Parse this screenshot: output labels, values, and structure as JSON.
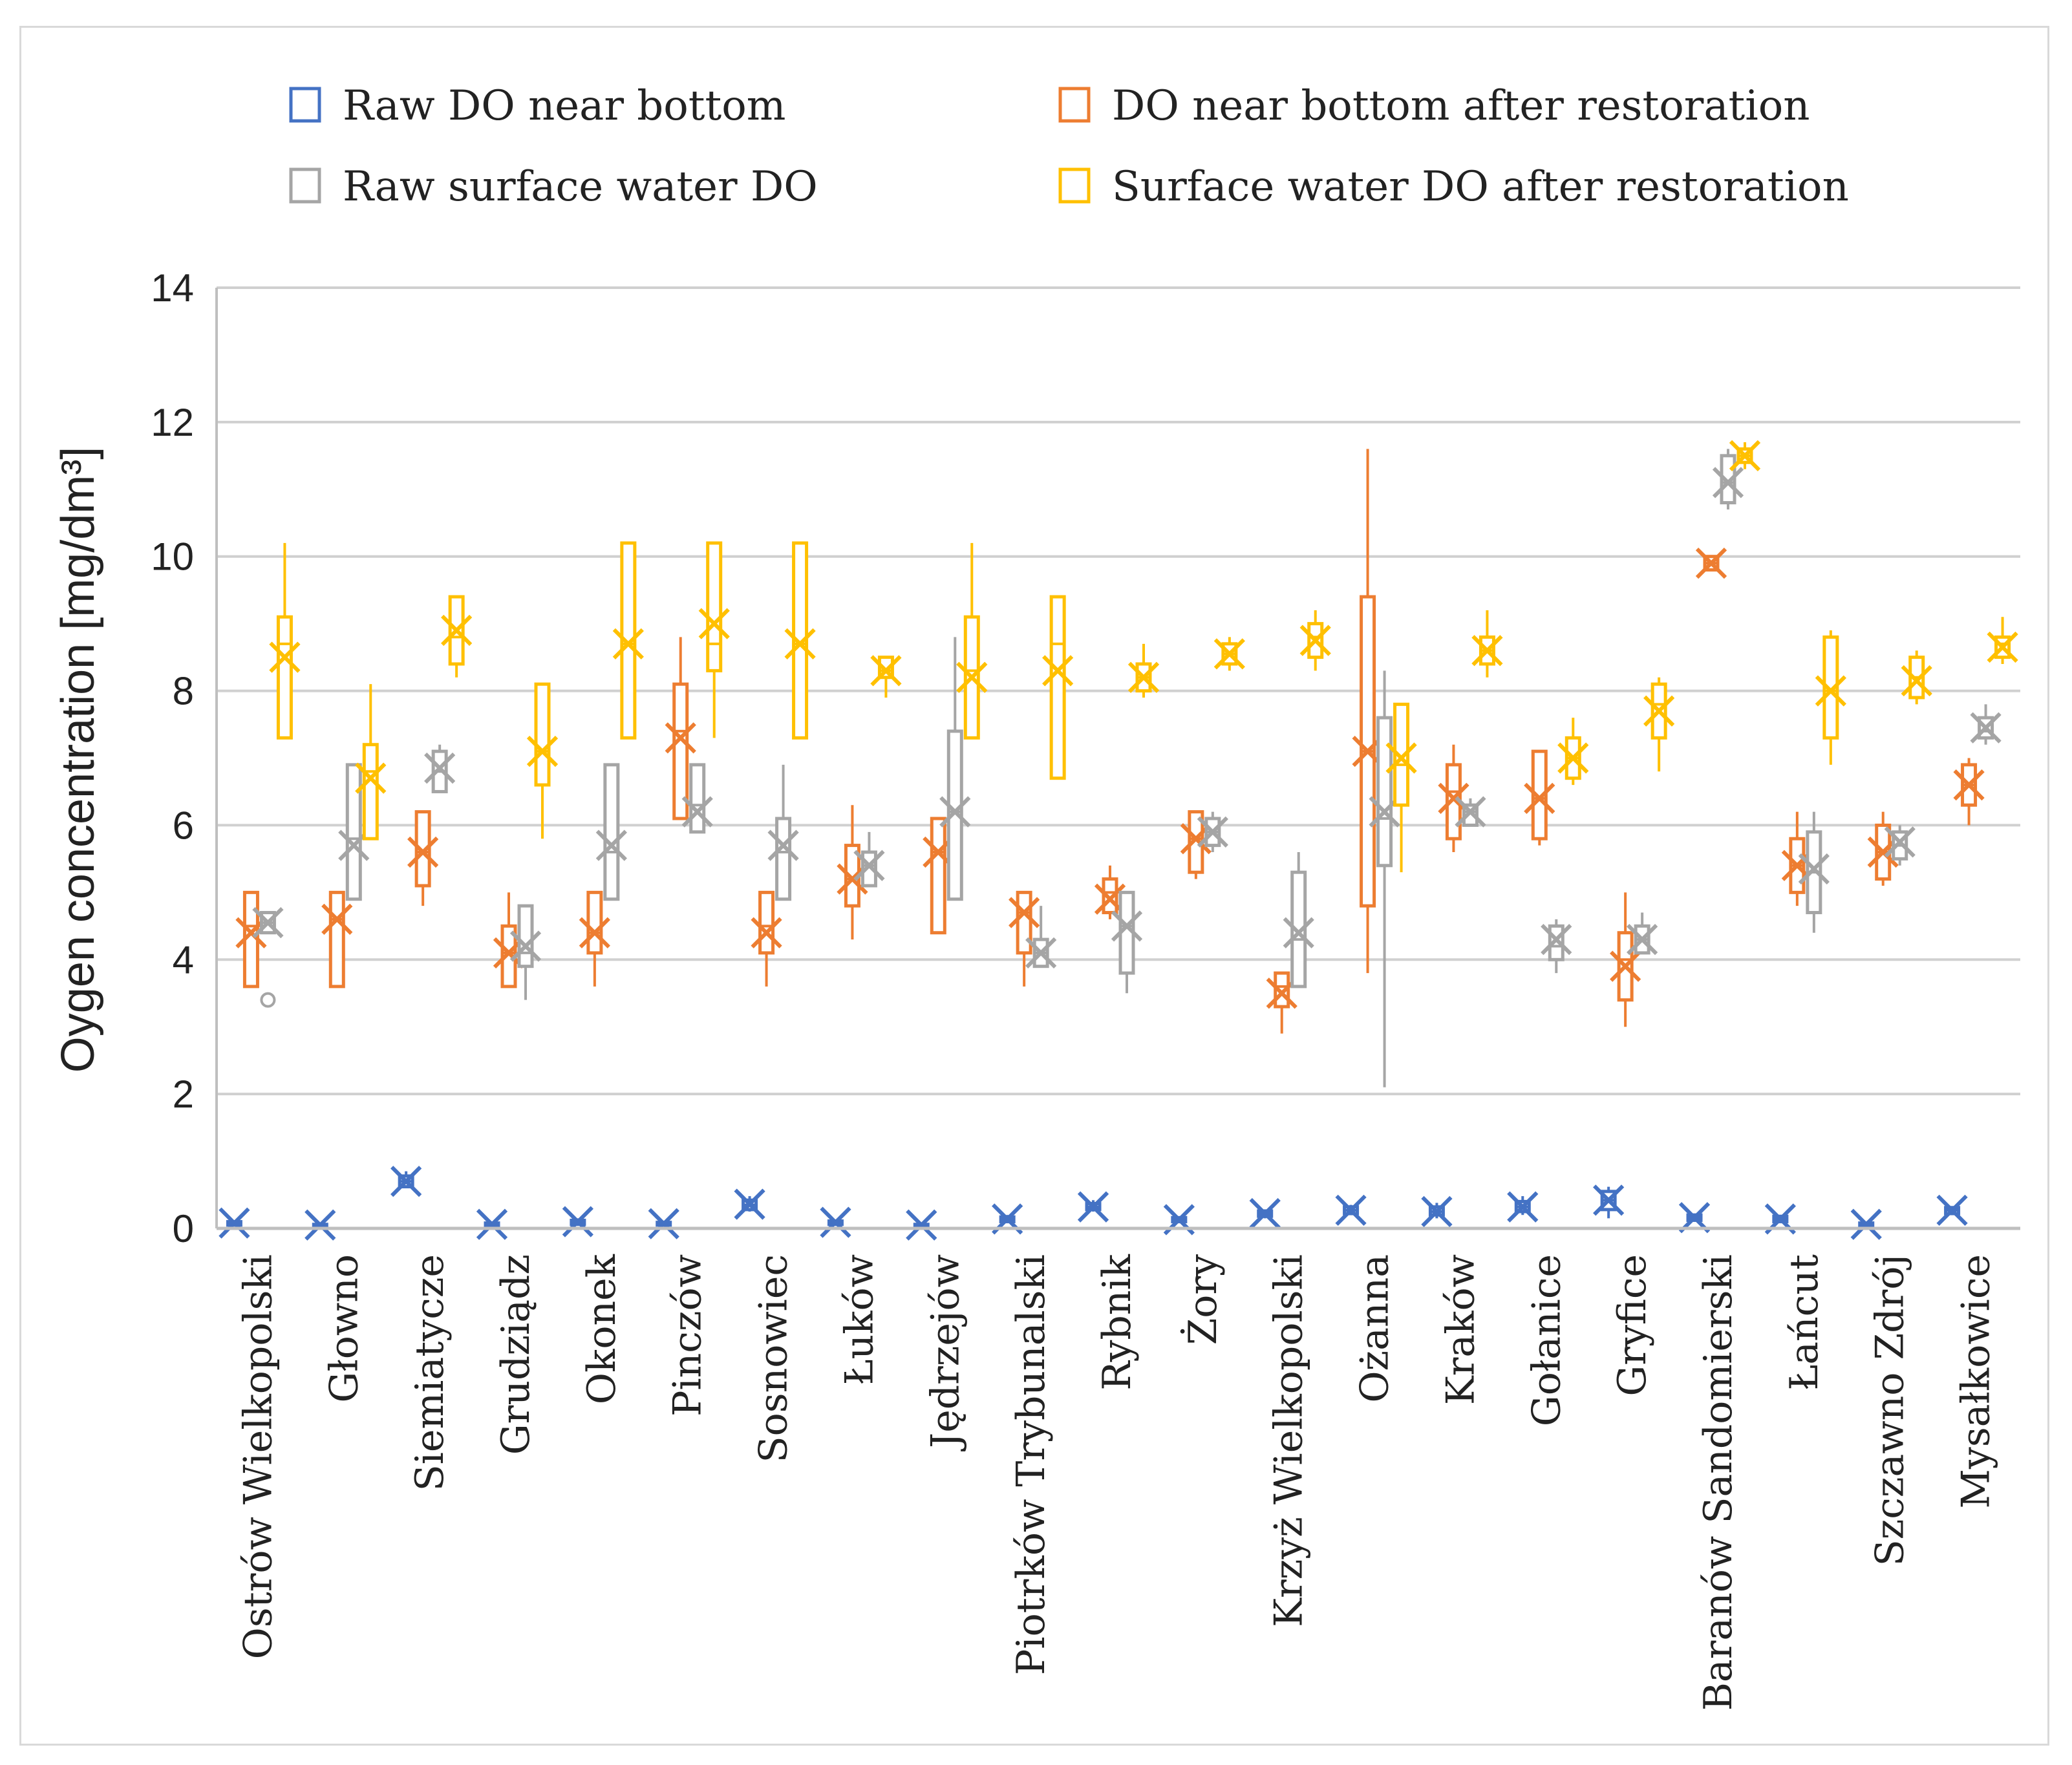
{
  "chart_data": {
    "type": "box",
    "ylabel": "Oygen concentration  [mg/dm³]",
    "ylim": [
      0,
      14
    ],
    "yticks": [
      0,
      2,
      4,
      6,
      8,
      10,
      12,
      14
    ],
    "grid": true,
    "legend_position": "top",
    "categories": [
      "Ostrów Wielkopolski",
      "Głowno",
      "Siemiatycze",
      "Grudziądz",
      "Okonek",
      "Pinczów",
      "Sosnowiec",
      "Łuków",
      "Jędrzejów",
      "Piotrków Trybunalski",
      "Rybnik",
      "Żory",
      "Krzyż Wielkopolski",
      "Ożanna",
      "Kraków",
      "Gołanice",
      "Gryfice",
      "Baranów Sandomierski",
      "Łańcut",
      "Szczawno Zdrój",
      "Mysałkowice"
    ],
    "series": [
      {
        "name": "Raw DO near bottom",
        "color": "#4472c4",
        "boxes": [
          {
            "min": 0.05,
            "q1": 0.05,
            "median": 0.08,
            "q3": 0.1,
            "max": 0.12,
            "mean": 0.08
          },
          {
            "min": 0.03,
            "q1": 0.04,
            "median": 0.05,
            "q3": 0.06,
            "max": 0.07,
            "mean": 0.05
          },
          {
            "min": 0.6,
            "q1": 0.62,
            "median": 0.7,
            "q3": 0.78,
            "max": 0.85,
            "mean": 0.7
          },
          {
            "min": 0.03,
            "q1": 0.04,
            "median": 0.06,
            "q3": 0.08,
            "max": 0.1,
            "mean": 0.06
          },
          {
            "min": 0.05,
            "q1": 0.06,
            "median": 0.08,
            "q3": 0.12,
            "max": 0.15,
            "mean": 0.1
          },
          {
            "min": 0.04,
            "q1": 0.05,
            "median": 0.07,
            "q3": 0.09,
            "max": 0.1,
            "mean": 0.07
          },
          {
            "min": 0.25,
            "q1": 0.28,
            "median": 0.35,
            "q3": 0.42,
            "max": 0.48,
            "mean": 0.36
          },
          {
            "min": 0.05,
            "q1": 0.06,
            "median": 0.08,
            "q3": 0.11,
            "max": 0.13,
            "mean": 0.09
          },
          {
            "min": 0.03,
            "q1": 0.04,
            "median": 0.05,
            "q3": 0.06,
            "max": 0.07,
            "mean": 0.05
          },
          {
            "min": 0.08,
            "q1": 0.1,
            "median": 0.13,
            "q3": 0.17,
            "max": 0.2,
            "mean": 0.14
          },
          {
            "min": 0.25,
            "q1": 0.28,
            "median": 0.32,
            "q3": 0.37,
            "max": 0.42,
            "mean": 0.32
          },
          {
            "min": 0.08,
            "q1": 0.1,
            "median": 0.13,
            "q3": 0.16,
            "max": 0.18,
            "mean": 0.13
          },
          {
            "min": 0.15,
            "q1": 0.18,
            "median": 0.22,
            "q3": 0.26,
            "max": 0.28,
            "mean": 0.22
          },
          {
            "min": 0.2,
            "q1": 0.22,
            "median": 0.27,
            "q3": 0.32,
            "max": 0.35,
            "mean": 0.27
          },
          {
            "min": 0.15,
            "q1": 0.2,
            "median": 0.25,
            "q3": 0.32,
            "max": 0.38,
            "mean": 0.25
          },
          {
            "min": 0.2,
            "q1": 0.25,
            "median": 0.32,
            "q3": 0.4,
            "max": 0.48,
            "mean": 0.32
          },
          {
            "min": 0.15,
            "q1": 0.28,
            "median": 0.42,
            "q3": 0.55,
            "max": 0.62,
            "mean": 0.42
          },
          {
            "min": 0.1,
            "q1": 0.12,
            "median": 0.16,
            "q3": 0.2,
            "max": 0.22,
            "mean": 0.16
          },
          {
            "min": 0.08,
            "q1": 0.1,
            "median": 0.14,
            "q3": 0.18,
            "max": 0.2,
            "mean": 0.14
          },
          {
            "min": 0.03,
            "q1": 0.04,
            "median": 0.06,
            "q3": 0.08,
            "max": 0.09,
            "mean": 0.06
          },
          {
            "min": 0.2,
            "q1": 0.22,
            "median": 0.27,
            "q3": 0.31,
            "max": 0.33,
            "mean": 0.27
          }
        ]
      },
      {
        "name": "DO near bottom after restoration",
        "color": "#ed7d31",
        "boxes": [
          {
            "min": 3.6,
            "q1": 3.6,
            "median": 4.5,
            "q3": 5.0,
            "max": 5.0,
            "mean": 4.4
          },
          {
            "min": 3.6,
            "q1": 3.6,
            "median": 4.6,
            "q3": 5.0,
            "max": 5.0,
            "mean": 4.6
          },
          {
            "min": 4.8,
            "q1": 5.1,
            "median": 5.6,
            "q3": 6.2,
            "max": 6.2,
            "mean": 5.6
          },
          {
            "min": 3.6,
            "q1": 3.6,
            "median": 4.1,
            "q3": 4.5,
            "max": 5.0,
            "mean": 4.1
          },
          {
            "min": 3.6,
            "q1": 4.1,
            "median": 4.4,
            "q3": 5.0,
            "max": 5.0,
            "mean": 4.4
          },
          {
            "min": 6.1,
            "q1": 6.1,
            "median": 7.4,
            "q3": 8.1,
            "max": 8.8,
            "mean": 7.3
          },
          {
            "min": 3.6,
            "q1": 4.1,
            "median": 4.5,
            "q3": 5.0,
            "max": 5.0,
            "mean": 4.4
          },
          {
            "min": 4.3,
            "q1": 4.8,
            "median": 5.2,
            "q3": 5.7,
            "max": 6.3,
            "mean": 5.2
          },
          {
            "min": 4.4,
            "q1": 4.4,
            "median": 5.6,
            "q3": 6.1,
            "max": 6.1,
            "mean": 5.6
          },
          {
            "min": 3.6,
            "q1": 4.1,
            "median": 4.7,
            "q3": 5.0,
            "max": 5.0,
            "mean": 4.7
          },
          {
            "min": 4.6,
            "q1": 4.7,
            "median": 5.0,
            "q3": 5.2,
            "max": 5.4,
            "mean": 4.9
          },
          {
            "min": 5.2,
            "q1": 5.3,
            "median": 5.8,
            "q3": 6.2,
            "max": 6.2,
            "mean": 5.8
          },
          {
            "min": 2.9,
            "q1": 3.3,
            "median": 3.6,
            "q3": 3.8,
            "max": 3.8,
            "mean": 3.5
          },
          {
            "min": 3.8,
            "q1": 4.8,
            "median": 7.1,
            "q3": 9.4,
            "max": 11.6,
            "mean": 7.1
          },
          {
            "min": 5.6,
            "q1": 5.8,
            "median": 6.5,
            "q3": 6.9,
            "max": 7.2,
            "mean": 6.4
          },
          {
            "min": 5.7,
            "q1": 5.8,
            "median": 6.4,
            "q3": 7.1,
            "max": 7.1,
            "mean": 6.4
          },
          {
            "min": 3.0,
            "q1": 3.4,
            "median": 4.0,
            "q3": 4.4,
            "max": 5.0,
            "mean": 3.9
          },
          {
            "min": 9.8,
            "q1": 9.8,
            "median": 9.9,
            "q3": 10.0,
            "max": 10.0,
            "mean": 9.9
          },
          {
            "min": 4.8,
            "q1": 5.0,
            "median": 5.4,
            "q3": 5.8,
            "max": 6.2,
            "mean": 5.4
          },
          {
            "min": 5.1,
            "q1": 5.2,
            "median": 5.6,
            "q3": 6.0,
            "max": 6.2,
            "mean": 5.6
          },
          {
            "min": 6.0,
            "q1": 6.3,
            "median": 6.6,
            "q3": 6.9,
            "max": 7.0,
            "mean": 6.6
          }
        ]
      },
      {
        "name": "Raw surface water DO",
        "color": "#a5a5a5",
        "boxes": [
          {
            "min": 4.4,
            "q1": 4.4,
            "median": 4.55,
            "q3": 4.7,
            "max": 4.7,
            "mean": 4.55,
            "outliers": [
              3.4
            ]
          },
          {
            "min": 4.9,
            "q1": 4.9,
            "median": 5.8,
            "q3": 6.9,
            "max": 6.9,
            "mean": 5.7
          },
          {
            "min": 6.5,
            "q1": 6.5,
            "median": 6.8,
            "q3": 7.1,
            "max": 7.2,
            "mean": 6.85
          },
          {
            "min": 3.4,
            "q1": 3.9,
            "median": 4.1,
            "q3": 4.8,
            "max": 4.8,
            "mean": 4.2
          },
          {
            "min": 4.9,
            "q1": 4.9,
            "median": 5.6,
            "q3": 6.9,
            "max": 6.9,
            "mean": 5.7
          },
          {
            "min": 5.9,
            "q1": 5.9,
            "median": 6.3,
            "q3": 6.9,
            "max": 6.9,
            "mean": 6.2
          },
          {
            "min": 4.9,
            "q1": 4.9,
            "median": 5.6,
            "q3": 6.1,
            "max": 6.9,
            "mean": 5.7
          },
          {
            "min": 5.1,
            "q1": 5.1,
            "median": 5.4,
            "q3": 5.6,
            "max": 5.9,
            "mean": 5.4
          },
          {
            "min": 4.9,
            "q1": 4.9,
            "median": 6.2,
            "q3": 7.4,
            "max": 8.8,
            "mean": 6.2
          },
          {
            "min": 3.9,
            "q1": 3.9,
            "median": 4.1,
            "q3": 4.3,
            "max": 4.8,
            "mean": 4.1
          },
          {
            "min": 3.5,
            "q1": 3.8,
            "median": 4.5,
            "q3": 5.0,
            "max": 5.0,
            "mean": 4.5
          },
          {
            "min": 5.6,
            "q1": 5.7,
            "median": 5.9,
            "q3": 6.1,
            "max": 6.2,
            "mean": 5.9
          },
          {
            "min": 3.6,
            "q1": 3.6,
            "median": 4.3,
            "q3": 5.3,
            "max": 5.6,
            "mean": 4.4
          },
          {
            "min": 2.1,
            "q1": 5.4,
            "median": 6.1,
            "q3": 7.6,
            "max": 8.3,
            "mean": 6.2
          },
          {
            "min": 6.0,
            "q1": 6.0,
            "median": 6.2,
            "q3": 6.3,
            "max": 6.4,
            "mean": 6.2
          },
          {
            "min": 3.8,
            "q1": 4.0,
            "median": 4.2,
            "q3": 4.5,
            "max": 4.6,
            "mean": 4.3
          },
          {
            "min": 4.1,
            "q1": 4.1,
            "median": 4.3,
            "q3": 4.5,
            "max": 4.7,
            "mean": 4.3
          },
          {
            "min": 10.7,
            "q1": 10.8,
            "median": 11.1,
            "q3": 11.5,
            "max": 11.6,
            "mean": 11.1
          },
          {
            "min": 4.4,
            "q1": 4.7,
            "median": 5.3,
            "q3": 5.9,
            "max": 6.2,
            "mean": 5.35
          },
          {
            "min": 5.4,
            "q1": 5.5,
            "median": 5.7,
            "q3": 5.9,
            "max": 6.0,
            "mean": 5.75
          },
          {
            "min": 7.2,
            "q1": 7.3,
            "median": 7.4,
            "q3": 7.6,
            "max": 7.8,
            "mean": 7.45
          }
        ]
      },
      {
        "name": "Surface water DO after restoration",
        "color": "#ffc000",
        "boxes": [
          {
            "min": 7.3,
            "q1": 7.3,
            "median": 8.7,
            "q3": 9.1,
            "max": 10.2,
            "mean": 8.5
          },
          {
            "min": 5.8,
            "q1": 5.8,
            "median": 6.8,
            "q3": 7.2,
            "max": 8.1,
            "mean": 6.7
          },
          {
            "min": 8.2,
            "q1": 8.4,
            "median": 8.8,
            "q3": 9.4,
            "max": 9.4,
            "mean": 8.9
          },
          {
            "min": 5.8,
            "q1": 6.6,
            "median": 7.1,
            "q3": 8.1,
            "max": 8.1,
            "mean": 7.1
          },
          {
            "min": 7.3,
            "q1": 7.3,
            "median": 8.7,
            "q3": 10.2,
            "max": 10.2,
            "mean": 8.7
          },
          {
            "min": 7.3,
            "q1": 8.3,
            "median": 8.7,
            "q3": 10.2,
            "max": 10.2,
            "mean": 9.0
          },
          {
            "min": 7.3,
            "q1": 7.3,
            "median": 8.7,
            "q3": 10.2,
            "max": 10.2,
            "mean": 8.7
          },
          {
            "min": 7.9,
            "q1": 8.2,
            "median": 8.3,
            "q3": 8.5,
            "max": 8.5,
            "mean": 8.3
          },
          {
            "min": 7.3,
            "q1": 7.3,
            "median": 8.3,
            "q3": 9.1,
            "max": 10.2,
            "mean": 8.2
          },
          {
            "min": 6.7,
            "q1": 6.7,
            "median": 8.7,
            "q3": 9.4,
            "max": 9.4,
            "mean": 8.3
          },
          {
            "min": 7.9,
            "q1": 8.0,
            "median": 8.2,
            "q3": 8.4,
            "max": 8.7,
            "mean": 8.2
          },
          {
            "min": 8.3,
            "q1": 8.4,
            "median": 8.55,
            "q3": 8.7,
            "max": 8.8,
            "mean": 8.55
          },
          {
            "min": 8.3,
            "q1": 8.5,
            "median": 8.8,
            "q3": 9.0,
            "max": 9.2,
            "mean": 8.75
          },
          {
            "min": 5.3,
            "q1": 6.3,
            "median": 6.9,
            "q3": 7.8,
            "max": 7.8,
            "mean": 7.0
          },
          {
            "min": 8.2,
            "q1": 8.4,
            "median": 8.6,
            "q3": 8.8,
            "max": 9.2,
            "mean": 8.6
          },
          {
            "min": 6.6,
            "q1": 6.7,
            "median": 7.0,
            "q3": 7.3,
            "max": 7.6,
            "mean": 7.0
          },
          {
            "min": 6.8,
            "q1": 7.3,
            "median": 7.8,
            "q3": 8.1,
            "max": 8.2,
            "mean": 7.7
          },
          {
            "min": 11.3,
            "q1": 11.4,
            "median": 11.5,
            "q3": 11.6,
            "max": 11.7,
            "mean": 11.5
          },
          {
            "min": 6.9,
            "q1": 7.3,
            "median": 8.0,
            "q3": 8.8,
            "max": 8.9,
            "mean": 8.0
          },
          {
            "min": 7.8,
            "q1": 7.9,
            "median": 8.2,
            "q3": 8.5,
            "max": 8.6,
            "mean": 8.15
          },
          {
            "min": 8.4,
            "q1": 8.5,
            "median": 8.7,
            "q3": 8.8,
            "max": 9.1,
            "mean": 8.65
          }
        ]
      }
    ]
  }
}
